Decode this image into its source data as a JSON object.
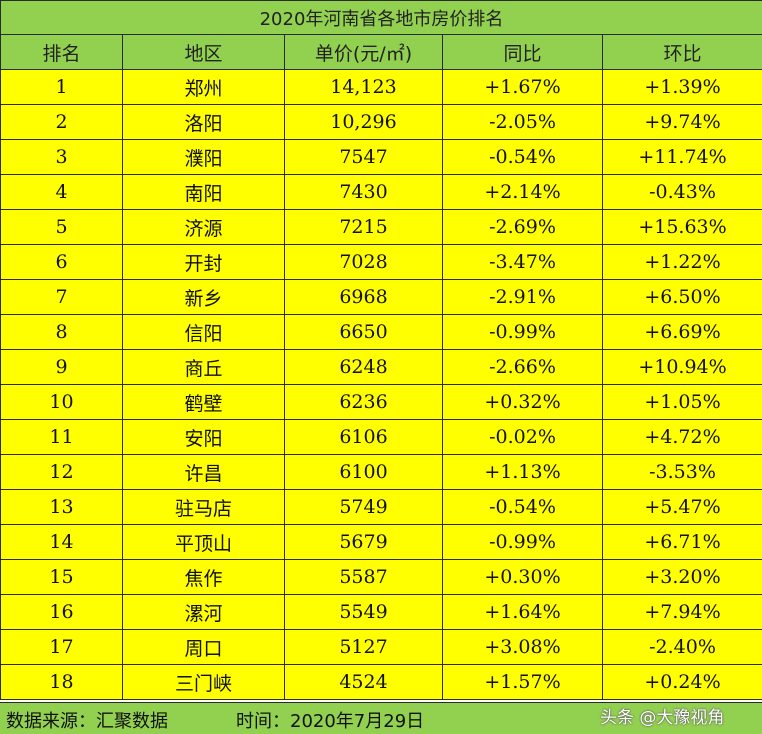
{
  "title": "2020年河南省各地市房价排名",
  "headers": [
    "排名",
    "地区",
    "单价(元/㎡)",
    "同比",
    "环比"
  ],
  "rows": [
    {
      "rank": "1",
      "city": "郑州",
      "price": "14,123",
      "yoy": "+1.67%",
      "mom": "+1.39%"
    },
    {
      "rank": "2",
      "city": "洛阳",
      "price": "10,296",
      "yoy": "-2.05%",
      "mom": "+9.74%"
    },
    {
      "rank": "3",
      "city": "濮阳",
      "price": "7547",
      "yoy": "-0.54%",
      "mom": "+11.74%"
    },
    {
      "rank": "4",
      "city": "南阳",
      "price": "7430",
      "yoy": "+2.14%",
      "mom": "-0.43%"
    },
    {
      "rank": "5",
      "city": "济源",
      "price": "7215",
      "yoy": "-2.69%",
      "mom": "+15.63%"
    },
    {
      "rank": "6",
      "city": "开封",
      "price": "7028",
      "yoy": "-3.47%",
      "mom": "+1.22%"
    },
    {
      "rank": "7",
      "city": "新乡",
      "price": "6968",
      "yoy": "-2.91%",
      "mom": "+6.50%"
    },
    {
      "rank": "8",
      "city": "信阳",
      "price": "6650",
      "yoy": "-0.99%",
      "mom": "+6.69%"
    },
    {
      "rank": "9",
      "city": "商丘",
      "price": "6248",
      "yoy": "-2.66%",
      "mom": "+10.94%"
    },
    {
      "rank": "10",
      "city": "鹤壁",
      "price": "6236",
      "yoy": "+0.32%",
      "mom": "+1.05%"
    },
    {
      "rank": "11",
      "city": "安阳",
      "price": "6106",
      "yoy": "-0.02%",
      "mom": "+4.72%"
    },
    {
      "rank": "12",
      "city": "许昌",
      "price": "6100",
      "yoy": "+1.13%",
      "mom": "-3.53%"
    },
    {
      "rank": "13",
      "city": "驻马店",
      "price": "5749",
      "yoy": "-0.54%",
      "mom": "+5.47%"
    },
    {
      "rank": "14",
      "city": "平顶山",
      "price": "5679",
      "yoy": "-0.99%",
      "mom": "+6.71%"
    },
    {
      "rank": "15",
      "city": "焦作",
      "price": "5587",
      "yoy": "+0.30%",
      "mom": "+3.20%"
    },
    {
      "rank": "16",
      "city": "漯河",
      "price": "5549",
      "yoy": "+1.64%",
      "mom": "+7.94%"
    },
    {
      "rank": "17",
      "city": "周口",
      "price": "5127",
      "yoy": "+3.08%",
      "mom": "-2.40%"
    },
    {
      "rank": "18",
      "city": "三门峡",
      "price": "4524",
      "yoy": "+1.57%",
      "mom": "+0.24%"
    }
  ],
  "footer": {
    "source": "数据来源：汇聚数据",
    "time": "时间：2020年7月29日",
    "watermark": "头条 @大豫视角"
  },
  "colors": {
    "header_bg": "#92d050",
    "row_bg": "#ffff00",
    "positive": "#ff2020",
    "negative": "#2eb82e"
  }
}
